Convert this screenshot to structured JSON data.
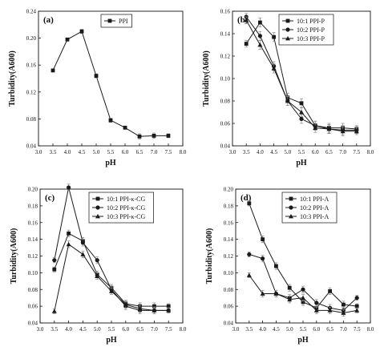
{
  "chart_data": [
    {
      "type": "line",
      "panel_label": "(a)",
      "xlabel": "pH",
      "ylabel": "Turbidity(A600)",
      "xlim": [
        3.0,
        8.0
      ],
      "ylim": [
        0.04,
        0.24
      ],
      "xticks": [
        "3.0",
        "3.5",
        "4.0",
        "4.5",
        "5.0",
        "5.5",
        "6.0",
        "6.5",
        "7.0",
        "7.5",
        "8.0"
      ],
      "yticks": [
        "0.04",
        "0.08",
        "0.12",
        "0.16",
        "0.20",
        "0.24"
      ],
      "ytick_values": [
        0.04,
        0.08,
        0.12,
        0.16,
        0.2,
        0.24
      ],
      "legend_position": "top-right",
      "x": [
        3.5,
        4.0,
        4.5,
        5.0,
        5.5,
        6.0,
        6.5,
        7.0,
        7.5
      ],
      "series": [
        {
          "name": "PPI",
          "marker": "square",
          "values": [
            0.152,
            0.198,
            0.21,
            0.144,
            0.078,
            0.067,
            0.054,
            0.055,
            0.055
          ],
          "err": [
            0.002,
            0.002,
            0.003,
            0.003,
            0.003,
            0.002,
            0.004,
            0.004,
            0.003
          ]
        }
      ]
    },
    {
      "type": "line",
      "panel_label": "(b)",
      "xlabel": "pH",
      "ylabel": "Turbidity(A600)",
      "xlim": [
        3.0,
        8.0
      ],
      "ylim": [
        0.04,
        0.16
      ],
      "xticks": [
        "3.0",
        "3.5",
        "4.0",
        "4.5",
        "5.0",
        "5.5",
        "6.0",
        "6.5",
        "7.0",
        "7.5",
        "8.0"
      ],
      "yticks": [
        "0.04",
        "0.06",
        "0.08",
        "0.10",
        "0.12",
        "0.14",
        "0.16"
      ],
      "ytick_values": [
        0.04,
        0.06,
        0.08,
        0.1,
        0.12,
        0.14,
        0.16
      ],
      "legend_position": "top-right",
      "x": [
        3.5,
        4.0,
        4.5,
        5.0,
        5.5,
        6.0,
        6.5,
        7.0,
        7.5
      ],
      "series": [
        {
          "name": "10:1 PPI-P",
          "marker": "square",
          "values": [
            0.131,
            0.15,
            0.137,
            0.083,
            0.078,
            0.058,
            0.056,
            0.056,
            0.055
          ],
          "err": [
            0.003,
            0.004,
            0.004,
            0.004,
            0.004,
            0.004,
            0.004,
            0.004,
            0.003
          ]
        },
        {
          "name": "10:2 PPI-P",
          "marker": "circle",
          "values": [
            0.155,
            0.138,
            0.111,
            0.08,
            0.064,
            0.058,
            0.055,
            0.054,
            0.054
          ],
          "err": [
            0.003,
            0.004,
            0.004,
            0.004,
            0.004,
            0.004,
            0.004,
            0.004,
            0.003
          ]
        },
        {
          "name": "10:3 PPI-P",
          "marker": "triangle",
          "values": [
            0.152,
            0.13,
            0.109,
            0.08,
            0.07,
            0.056,
            0.055,
            0.053,
            0.053
          ],
          "err": [
            0.003,
            0.004,
            0.004,
            0.004,
            0.004,
            0.004,
            0.004,
            0.004,
            0.003
          ]
        }
      ]
    },
    {
      "type": "line",
      "panel_label": "(c)",
      "xlabel": "pH",
      "ylabel": "Turbidity(A600)",
      "xlim": [
        3.0,
        8.0
      ],
      "ylim": [
        0.04,
        0.2
      ],
      "xticks": [
        "3.0",
        "3.5",
        "4.0",
        "4.5",
        "5.0",
        "5.5",
        "6.0",
        "6.5",
        "7.0",
        "7.5",
        "8.0"
      ],
      "yticks": [
        "0.04",
        "0.06",
        "0.08",
        "0.10",
        "0.12",
        "0.14",
        "0.16",
        "0.18",
        "0.20"
      ],
      "ytick_values": [
        0.04,
        0.06,
        0.08,
        0.1,
        0.12,
        0.14,
        0.16,
        0.18,
        0.2
      ],
      "legend_position": "top-right",
      "x": [
        3.5,
        4.0,
        4.5,
        5.0,
        5.5,
        6.0,
        6.5,
        7.0,
        7.5
      ],
      "series": [
        {
          "name": "10:1 PPI-κ-CG",
          "marker": "square",
          "values": [
            0.104,
            0.147,
            0.138,
            0.098,
            0.082,
            0.063,
            0.06,
            0.06,
            0.06
          ],
          "err": [
            0.003,
            0.004,
            0.004,
            0.004,
            0.004,
            0.004,
            0.004,
            0.004,
            0.003
          ]
        },
        {
          "name": "10:2 PPI-κ-CG",
          "marker": "circle",
          "values": [
            0.115,
            0.202,
            0.136,
            0.115,
            0.08,
            0.06,
            0.055,
            0.055,
            0.055
          ],
          "err": [
            0.003,
            0.004,
            0.004,
            0.004,
            0.004,
            0.004,
            0.004,
            0.004,
            0.003
          ]
        },
        {
          "name": "10:3 PPI-κ-CG",
          "marker": "triangle",
          "values": [
            0.054,
            0.134,
            0.122,
            0.096,
            0.078,
            0.062,
            0.057,
            0.055,
            0.055
          ],
          "err": [
            0.003,
            0.004,
            0.004,
            0.004,
            0.004,
            0.004,
            0.004,
            0.004,
            0.003
          ]
        }
      ]
    },
    {
      "type": "line",
      "panel_label": "(d)",
      "xlabel": "pH",
      "ylabel": "Turbidity(A600)",
      "xlim": [
        3.0,
        8.0
      ],
      "ylim": [
        0.04,
        0.2
      ],
      "xticks": [
        "3.0",
        "3.5",
        "4.0",
        "4.5",
        "5.0",
        "5.5",
        "6.0",
        "6.5",
        "7.0",
        "7.5",
        "8.0"
      ],
      "yticks": [
        "0.04",
        "0.06",
        "0.08",
        "0.10",
        "0.12",
        "0.14",
        "0.16",
        "0.18",
        "0.20"
      ],
      "ytick_values": [
        0.04,
        0.06,
        0.08,
        0.1,
        0.12,
        0.14,
        0.16,
        0.18,
        0.2
      ],
      "legend_position": "top-right",
      "x": [
        3.5,
        4.0,
        4.5,
        5.0,
        5.5,
        6.0,
        6.5,
        7.0,
        7.5
      ],
      "series": [
        {
          "name": "10:1 PPI-A",
          "marker": "square",
          "values": [
            0.183,
            0.14,
            0.108,
            0.082,
            0.065,
            0.058,
            0.078,
            0.062,
            0.06
          ],
          "err": [
            0.003,
            0.004,
            0.004,
            0.004,
            0.004,
            0.004,
            0.004,
            0.004,
            0.003
          ]
        },
        {
          "name": "10:2 PPI-A",
          "marker": "circle",
          "values": [
            0.122,
            0.117,
            0.075,
            0.07,
            0.08,
            0.064,
            0.058,
            0.055,
            0.07
          ],
          "err": [
            0.003,
            0.004,
            0.004,
            0.004,
            0.004,
            0.004,
            0.004,
            0.004,
            0.003
          ]
        },
        {
          "name": "10:3 PPI-A",
          "marker": "triangle",
          "values": [
            0.097,
            0.075,
            0.075,
            0.068,
            0.07,
            0.055,
            0.055,
            0.052,
            0.055
          ],
          "err": [
            0.003,
            0.004,
            0.004,
            0.004,
            0.004,
            0.004,
            0.004,
            0.004,
            0.003
          ]
        }
      ]
    }
  ]
}
